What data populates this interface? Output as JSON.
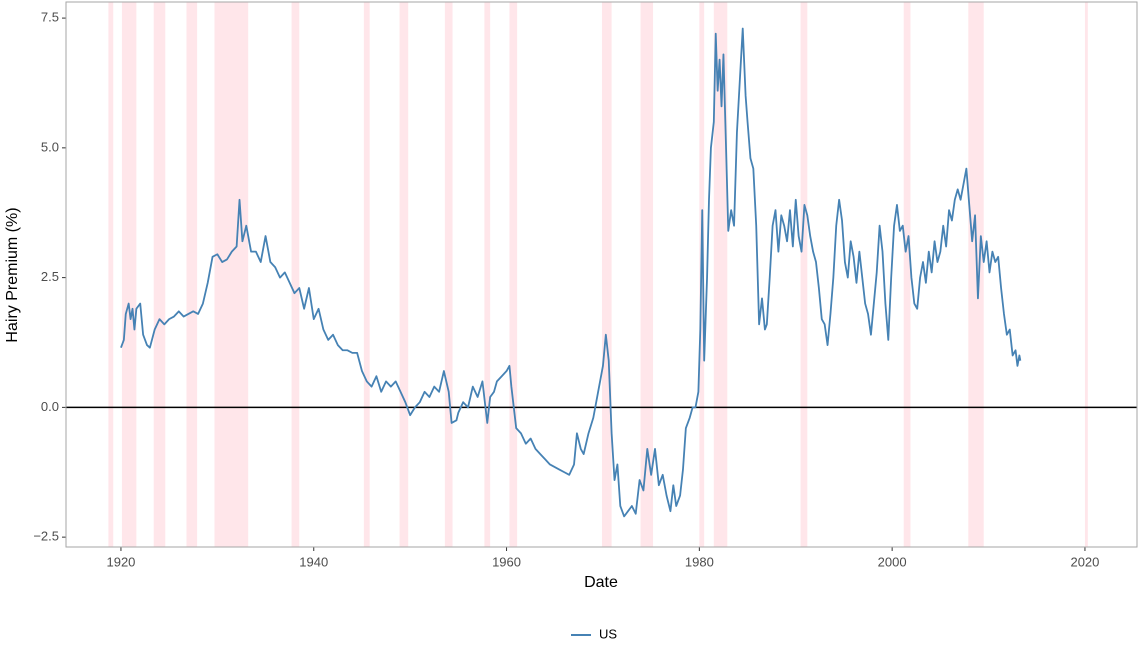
{
  "chart_data": {
    "type": "line",
    "x_label": "Date",
    "y_label": "Hairy Premium (%)",
    "xlim": [
      1914.3,
      2025.4
    ],
    "ylim": [
      -2.69,
      7.81
    ],
    "xticks": [
      1920,
      1940,
      1960,
      1980,
      2000,
      2020
    ],
    "yticks": [
      {
        "value": -2.5,
        "label": "−2.5"
      },
      {
        "value": 0,
        "label": "0.0"
      },
      2.5,
      {
        "value": 5,
        "label": "5.0"
      },
      7.5
    ],
    "hline": 0,
    "grid": false,
    "legend": "bottom",
    "recession_color": "#ffe6ea",
    "recessions": [
      [
        1918.7,
        1919.2
      ],
      [
        1920.1,
        1921.6
      ],
      [
        1923.4,
        1924.6
      ],
      [
        1926.8,
        1927.9
      ],
      [
        1929.7,
        1933.2
      ],
      [
        1937.7,
        1938.5
      ],
      [
        1945.2,
        1945.8
      ],
      [
        1948.9,
        1949.8
      ],
      [
        1953.6,
        1954.4
      ],
      [
        1957.7,
        1958.3
      ],
      [
        1960.3,
        1961.1
      ],
      [
        1969.9,
        1970.9
      ],
      [
        1973.9,
        1975.2
      ],
      [
        1980.0,
        1980.5
      ],
      [
        1981.5,
        1982.9
      ],
      [
        1990.5,
        1991.2
      ],
      [
        2001.2,
        2001.9
      ],
      [
        2007.9,
        2009.5
      ],
      [
        2020.0,
        2020.3
      ]
    ],
    "x": [
      1920.0,
      1920.3,
      1920.5,
      1920.8,
      1921.0,
      1921.2,
      1921.4,
      1921.6,
      1922.0,
      1922.3,
      1922.7,
      1923.0,
      1923.5,
      1924.0,
      1924.5,
      1925.0,
      1925.5,
      1926.0,
      1926.5,
      1927.0,
      1927.5,
      1928.0,
      1928.5,
      1929.0,
      1929.5,
      1930.0,
      1930.5,
      1931.0,
      1931.5,
      1932.0,
      1932.3,
      1932.6,
      1933.0,
      1933.5,
      1934.0,
      1934.5,
      1935.0,
      1935.5,
      1936.0,
      1936.5,
      1937.0,
      1937.5,
      1938.0,
      1938.5,
      1939.0,
      1939.5,
      1940.0,
      1940.5,
      1941.0,
      1941.5,
      1942.0,
      1942.5,
      1943.0,
      1943.5,
      1944.0,
      1944.5,
      1945.0,
      1945.5,
      1946.0,
      1946.5,
      1947.0,
      1947.5,
      1948.0,
      1948.5,
      1949.0,
      1949.5,
      1950.0,
      1950.5,
      1951.0,
      1951.5,
      1952.0,
      1952.5,
      1953.0,
      1953.5,
      1954.0,
      1954.3,
      1954.8,
      1955.0,
      1955.5,
      1956.0,
      1956.5,
      1957.0,
      1957.5,
      1958.0,
      1958.3,
      1958.7,
      1959.0,
      1959.5,
      1960.0,
      1960.3,
      1960.5,
      1961.0,
      1961.5,
      1962.0,
      1962.5,
      1963.0,
      1963.5,
      1964.0,
      1964.5,
      1965.0,
      1965.5,
      1966.0,
      1966.5,
      1967.0,
      1967.3,
      1967.7,
      1968.0,
      1968.5,
      1969.0,
      1969.5,
      1970.0,
      1970.3,
      1970.6,
      1970.9,
      1971.2,
      1971.5,
      1971.8,
      1972.2,
      1972.6,
      1973.0,
      1973.4,
      1973.8,
      1974.2,
      1974.6,
      1975.0,
      1975.4,
      1975.8,
      1976.2,
      1976.6,
      1977.0,
      1977.3,
      1977.6,
      1978.0,
      1978.3,
      1978.6,
      1979.0,
      1979.3,
      1979.6,
      1979.9,
      1980.1,
      1980.3,
      1980.5,
      1980.8,
      1981.0,
      1981.2,
      1981.5,
      1981.7,
      1981.9,
      1982.1,
      1982.3,
      1982.5,
      1982.8,
      1983.0,
      1983.3,
      1983.6,
      1983.9,
      1984.2,
      1984.5,
      1984.8,
      1985.0,
      1985.3,
      1985.6,
      1985.9,
      1986.2,
      1986.5,
      1986.8,
      1987.0,
      1987.3,
      1987.6,
      1987.9,
      1988.2,
      1988.5,
      1988.8,
      1989.1,
      1989.4,
      1989.7,
      1990.0,
      1990.3,
      1990.6,
      1990.9,
      1991.2,
      1991.5,
      1991.8,
      1992.1,
      1992.4,
      1992.7,
      1993.0,
      1993.3,
      1993.6,
      1993.9,
      1994.2,
      1994.5,
      1994.8,
      1995.1,
      1995.4,
      1995.7,
      1996.0,
      1996.3,
      1996.6,
      1996.9,
      1997.2,
      1997.5,
      1997.8,
      1998.1,
      1998.4,
      1998.7,
      1999.0,
      1999.3,
      1999.6,
      1999.9,
      2000.2,
      2000.5,
      2000.8,
      2001.1,
      2001.4,
      2001.7,
      2002.0,
      2002.3,
      2002.6,
      2002.9,
      2003.2,
      2003.5,
      2003.8,
      2004.1,
      2004.4,
      2004.7,
      2005.0,
      2005.3,
      2005.6,
      2005.9,
      2006.2,
      2006.5,
      2006.8,
      2007.1,
      2007.4,
      2007.7,
      2008.0,
      2008.3,
      2008.6,
      2008.9,
      2009.2,
      2009.5,
      2009.8,
      2010.1,
      2010.4,
      2010.7,
      2011.0,
      2011.3,
      2011.6,
      2011.9,
      2012.2,
      2012.5,
      2012.8,
      2013.0,
      2013.2,
      2013.3
    ],
    "series": [
      {
        "name": "US",
        "color": "#4682b4",
        "values": [
          1.15,
          1.3,
          1.8,
          2.0,
          1.7,
          1.9,
          1.5,
          1.9,
          2.0,
          1.4,
          1.2,
          1.15,
          1.5,
          1.7,
          1.6,
          1.7,
          1.75,
          1.85,
          1.75,
          1.8,
          1.85,
          1.8,
          2.0,
          2.4,
          2.9,
          2.95,
          2.8,
          2.85,
          3.0,
          3.1,
          4.0,
          3.2,
          3.5,
          3.0,
          3.0,
          2.8,
          3.3,
          2.8,
          2.7,
          2.5,
          2.6,
          2.4,
          2.2,
          2.3,
          1.9,
          2.3,
          1.7,
          1.9,
          1.5,
          1.3,
          1.4,
          1.2,
          1.1,
          1.1,
          1.05,
          1.05,
          0.7,
          0.5,
          0.4,
          0.6,
          0.3,
          0.5,
          0.4,
          0.5,
          0.3,
          0.1,
          -0.15,
          0.0,
          0.1,
          0.3,
          0.2,
          0.4,
          0.3,
          0.7,
          0.3,
          -0.3,
          -0.25,
          -0.1,
          0.1,
          0.0,
          0.4,
          0.2,
          0.5,
          -0.3,
          0.2,
          0.3,
          0.5,
          0.6,
          0.7,
          0.8,
          0.4,
          -0.4,
          -0.5,
          -0.7,
          -0.6,
          -0.8,
          -0.9,
          -1.0,
          -1.1,
          -1.15,
          -1.2,
          -1.25,
          -1.3,
          -1.1,
          -0.5,
          -0.8,
          -0.9,
          -0.5,
          -0.2,
          0.3,
          0.8,
          1.4,
          0.9,
          -0.5,
          -1.4,
          -1.1,
          -1.9,
          -2.1,
          -2.0,
          -1.9,
          -2.05,
          -1.4,
          -1.6,
          -0.8,
          -1.3,
          -0.8,
          -1.5,
          -1.3,
          -1.7,
          -2.0,
          -1.5,
          -1.9,
          -1.7,
          -1.2,
          -0.4,
          -0.2,
          0.0,
          0.0,
          0.3,
          1.5,
          3.8,
          0.9,
          2.5,
          4.0,
          5.0,
          5.5,
          7.2,
          6.1,
          6.7,
          5.8,
          6.8,
          4.8,
          3.4,
          3.8,
          3.5,
          5.3,
          6.3,
          7.3,
          6.0,
          5.5,
          4.8,
          4.6,
          3.5,
          1.6,
          2.1,
          1.5,
          1.6,
          2.5,
          3.5,
          3.8,
          3.0,
          3.7,
          3.5,
          3.2,
          3.8,
          3.1,
          4.0,
          3.3,
          3.0,
          3.9,
          3.7,
          3.3,
          3.0,
          2.8,
          2.3,
          1.7,
          1.6,
          1.2,
          1.8,
          2.5,
          3.5,
          4.0,
          3.6,
          2.8,
          2.5,
          3.2,
          2.9,
          2.4,
          3.0,
          2.5,
          2.0,
          1.8,
          1.4,
          2.0,
          2.6,
          3.5,
          3.0,
          2.0,
          1.3,
          2.5,
          3.5,
          3.9,
          3.4,
          3.5,
          3.0,
          3.3,
          2.5,
          2.0,
          1.9,
          2.5,
          2.8,
          2.4,
          3.0,
          2.6,
          3.2,
          2.8,
          3.0,
          3.5,
          3.1,
          3.8,
          3.6,
          4.0,
          4.2,
          4.0,
          4.3,
          4.6,
          3.9,
          3.2,
          3.7,
          2.1,
          3.3,
          2.8,
          3.2,
          2.6,
          3.0,
          2.8,
          2.9,
          2.3,
          1.8,
          1.4,
          1.5,
          1.0,
          1.1,
          0.8,
          1.0,
          0.9
        ]
      }
    ]
  }
}
